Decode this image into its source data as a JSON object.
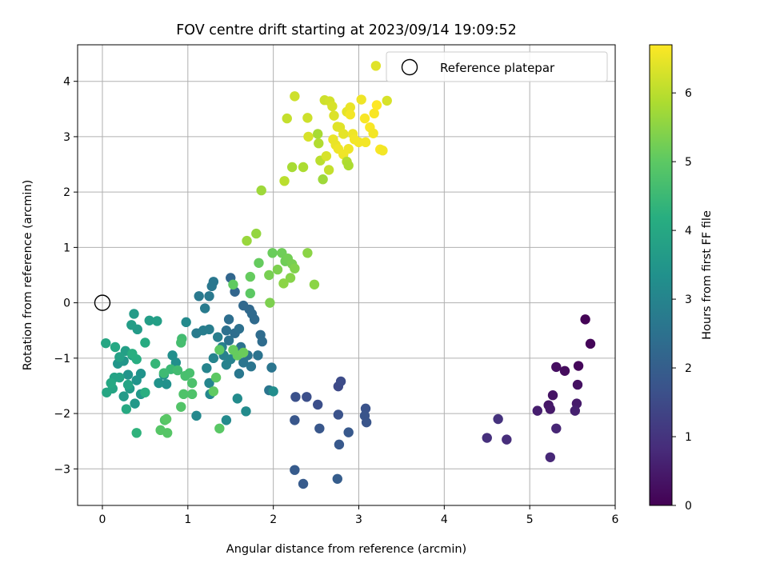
{
  "chart_data": {
    "type": "scatter",
    "title": "FOV centre drift starting at 2023/09/14 19:09:52",
    "xlabel": "Angular distance from reference (arcmin)",
    "ylabel": "Rotation from reference (arcmin)",
    "xlim": [
      -0.29,
      6.0
    ],
    "ylim": [
      -3.66,
      4.66
    ],
    "xticks": [
      0,
      1,
      2,
      3,
      4,
      5,
      6
    ],
    "yticks": [
      -3,
      -2,
      -1,
      0,
      1,
      2,
      3,
      4
    ],
    "grid": true,
    "legend": {
      "location": "upper right",
      "entries": [
        "Reference platepar"
      ]
    },
    "reference_point": {
      "label": "Reference platepar",
      "x": 0.0,
      "y": 0.0
    },
    "colorbar": {
      "label": "Hours from first FF file",
      "colormap": "viridis",
      "range": [
        0,
        6.7
      ],
      "ticks": [
        0,
        1,
        2,
        3,
        4,
        5,
        6
      ]
    },
    "series": [
      {
        "points": [
          [
            5.65,
            -0.3,
            0.05
          ],
          [
            5.71,
            -0.74,
            0.08
          ],
          [
            5.57,
            -1.14,
            0.12
          ],
          [
            5.41,
            -1.23,
            0.2
          ],
          [
            5.31,
            -1.16,
            0.25
          ],
          [
            5.56,
            -1.48,
            0.3
          ],
          [
            5.27,
            -1.67,
            0.35
          ],
          [
            5.22,
            -1.85,
            0.4
          ],
          [
            5.24,
            -1.92,
            0.45
          ],
          [
            5.55,
            -1.82,
            0.5
          ],
          [
            5.09,
            -1.95,
            0.55
          ],
          [
            5.53,
            -1.95,
            0.6
          ],
          [
            5.31,
            -2.27,
            0.7
          ],
          [
            5.24,
            -2.79,
            0.75
          ],
          [
            4.73,
            -2.47,
            0.85
          ],
          [
            4.5,
            -2.44,
            0.9
          ],
          [
            4.63,
            -2.1,
            0.95
          ],
          [
            2.76,
            -1.51,
            1.5
          ],
          [
            2.79,
            -1.42,
            1.55
          ],
          [
            2.52,
            -1.84,
            1.6
          ],
          [
            2.39,
            -1.7,
            1.6
          ],
          [
            2.26,
            -1.7,
            1.65
          ],
          [
            2.76,
            -2.02,
            1.7
          ],
          [
            3.08,
            -1.91,
            1.7
          ],
          [
            3.07,
            -2.04,
            1.75
          ],
          [
            3.09,
            -2.16,
            1.75
          ],
          [
            2.25,
            -2.12,
            1.8
          ],
          [
            2.54,
            -2.27,
            1.8
          ],
          [
            2.88,
            -2.34,
            1.85
          ],
          [
            2.77,
            -2.56,
            1.85
          ],
          [
            2.25,
            -3.02,
            1.9
          ],
          [
            2.35,
            -3.27,
            1.9
          ],
          [
            2.75,
            -3.18,
            1.95
          ],
          [
            1.5,
            0.45,
            2.2
          ],
          [
            1.55,
            0.2,
            2.2
          ],
          [
            1.65,
            -0.05,
            2.25
          ],
          [
            1.72,
            -0.12,
            2.25
          ],
          [
            1.75,
            -0.2,
            2.3
          ],
          [
            1.78,
            -0.3,
            2.3
          ],
          [
            1.85,
            -0.58,
            2.35
          ],
          [
            1.87,
            -0.7,
            2.35
          ],
          [
            1.48,
            -0.3,
            2.4
          ],
          [
            1.55,
            -0.55,
            2.4
          ],
          [
            1.45,
            -0.5,
            2.45
          ],
          [
            1.6,
            -0.47,
            2.45
          ],
          [
            1.48,
            -0.68,
            2.5
          ],
          [
            1.62,
            -0.8,
            2.5
          ],
          [
            1.7,
            -0.95,
            2.55
          ],
          [
            1.82,
            -0.95,
            2.55
          ],
          [
            1.65,
            -1.08,
            2.6
          ],
          [
            1.74,
            -1.15,
            2.6
          ],
          [
            1.6,
            -1.28,
            2.65
          ],
          [
            1.98,
            -1.17,
            2.6
          ],
          [
            1.95,
            -1.58,
            2.6
          ],
          [
            1.28,
            0.3,
            2.65
          ],
          [
            1.3,
            0.38,
            2.65
          ],
          [
            1.25,
            0.12,
            2.7
          ],
          [
            1.13,
            0.12,
            2.7
          ],
          [
            1.2,
            -0.1,
            2.75
          ],
          [
            1.1,
            -0.55,
            2.75
          ],
          [
            1.18,
            -0.5,
            2.8
          ],
          [
            1.25,
            -0.48,
            2.8
          ],
          [
            1.35,
            -0.62,
            2.85
          ],
          [
            1.4,
            -0.8,
            2.9
          ],
          [
            1.42,
            -0.95,
            2.9
          ],
          [
            1.5,
            -1.02,
            2.95
          ],
          [
            1.45,
            -1.12,
            2.95
          ],
          [
            1.3,
            -1.0,
            3.0
          ],
          [
            1.22,
            -1.18,
            3.0
          ],
          [
            1.25,
            -1.45,
            3.05
          ],
          [
            1.26,
            -1.65,
            3.1
          ],
          [
            1.1,
            -2.04,
            3.1
          ],
          [
            0.98,
            -0.35,
            3.15
          ],
          [
            1.45,
            -2.12,
            3.15
          ],
          [
            1.58,
            -1.73,
            3.2
          ],
          [
            1.68,
            -1.96,
            3.2
          ],
          [
            2.0,
            -1.6,
            3.25
          ],
          [
            0.82,
            -0.95,
            3.3
          ],
          [
            0.86,
            -1.08,
            3.3
          ],
          [
            0.72,
            -1.3,
            3.35
          ],
          [
            0.75,
            -1.47,
            3.35
          ],
          [
            0.66,
            -1.45,
            3.4
          ],
          [
            0.45,
            -1.28,
            3.4
          ],
          [
            0.4,
            -1.4,
            3.45
          ],
          [
            0.3,
            -1.3,
            3.45
          ],
          [
            0.25,
            -1.05,
            3.5
          ],
          [
            0.18,
            -1.1,
            3.5
          ],
          [
            0.38,
            -1.82,
            3.55
          ],
          [
            0.45,
            -1.65,
            3.55
          ],
          [
            0.32,
            -1.55,
            3.6
          ],
          [
            0.25,
            -1.69,
            3.6
          ],
          [
            0.37,
            -0.2,
            3.65
          ],
          [
            0.41,
            -0.48,
            3.65
          ],
          [
            0.34,
            -0.4,
            3.7
          ],
          [
            0.55,
            -0.32,
            3.7
          ],
          [
            0.64,
            -0.33,
            3.75
          ],
          [
            0.27,
            -0.87,
            3.75
          ],
          [
            0.35,
            -0.95,
            3.8
          ],
          [
            0.2,
            -0.98,
            3.8
          ],
          [
            0.14,
            -1.35,
            3.85
          ],
          [
            0.2,
            -1.35,
            3.85
          ],
          [
            0.3,
            -1.48,
            3.9
          ],
          [
            0.12,
            -1.55,
            3.9
          ],
          [
            0.05,
            -1.62,
            3.95
          ],
          [
            0.04,
            -0.73,
            3.95
          ],
          [
            0.15,
            -0.8,
            4.0
          ],
          [
            0.1,
            -1.45,
            4.0
          ],
          [
            0.28,
            -1.92,
            4.05
          ],
          [
            0.5,
            -0.72,
            4.1
          ],
          [
            0.4,
            -1.02,
            4.15
          ],
          [
            0.35,
            -0.92,
            4.2
          ],
          [
            0.5,
            -1.62,
            4.2
          ],
          [
            0.4,
            -2.35,
            4.3
          ],
          [
            0.62,
            -1.1,
            4.4
          ],
          [
            0.8,
            -1.2,
            4.5
          ],
          [
            0.72,
            -1.27,
            4.55
          ],
          [
            0.88,
            -1.22,
            4.6
          ],
          [
            0.93,
            -0.65,
            4.6
          ],
          [
            0.92,
            -0.72,
            4.65
          ],
          [
            0.97,
            -1.32,
            4.7
          ],
          [
            1.02,
            -1.27,
            4.7
          ],
          [
            1.05,
            -1.45,
            4.75
          ],
          [
            0.95,
            -1.65,
            4.8
          ],
          [
            1.05,
            -1.65,
            4.8
          ],
          [
            0.92,
            -1.88,
            4.85
          ],
          [
            0.73,
            -2.12,
            4.85
          ],
          [
            0.68,
            -2.3,
            4.9
          ],
          [
            0.76,
            -2.35,
            4.9
          ],
          [
            0.75,
            -2.1,
            4.95
          ],
          [
            1.37,
            -2.27,
            4.95
          ],
          [
            1.37,
            -0.85,
            5.0
          ],
          [
            1.33,
            -1.35,
            5.0
          ],
          [
            1.3,
            -1.6,
            5.05
          ],
          [
            1.53,
            -0.85,
            5.1
          ],
          [
            1.58,
            -0.95,
            5.1
          ],
          [
            1.65,
            -0.9,
            5.15
          ],
          [
            1.53,
            0.33,
            5.05
          ],
          [
            1.83,
            0.72,
            5.1
          ],
          [
            1.99,
            0.9,
            5.15
          ],
          [
            2.1,
            0.9,
            5.2
          ],
          [
            2.14,
            0.75,
            5.2
          ],
          [
            2.17,
            0.8,
            5.25
          ],
          [
            2.22,
            0.7,
            5.3
          ],
          [
            1.95,
            0.5,
            5.3
          ],
          [
            2.05,
            0.6,
            5.35
          ],
          [
            1.96,
            0.0,
            5.35
          ],
          [
            2.25,
            0.62,
            5.4
          ],
          [
            2.2,
            0.45,
            5.45
          ],
          [
            2.4,
            0.9,
            5.5
          ],
          [
            2.48,
            0.33,
            5.5
          ],
          [
            1.8,
            1.25,
            5.6
          ],
          [
            1.69,
            1.12,
            5.65
          ],
          [
            1.86,
            2.03,
            5.7
          ],
          [
            1.73,
            0.47,
            5.1
          ],
          [
            1.73,
            0.17,
            5.0
          ],
          [
            2.12,
            0.35,
            5.5
          ],
          [
            2.22,
            2.45,
            5.8
          ],
          [
            2.35,
            2.45,
            5.85
          ],
          [
            2.13,
            2.2,
            6.0
          ],
          [
            2.16,
            3.33,
            6.1
          ],
          [
            2.25,
            3.73,
            6.2
          ],
          [
            2.4,
            3.34,
            6.2
          ],
          [
            2.41,
            3.0,
            6.3
          ],
          [
            2.52,
            3.05,
            5.8
          ],
          [
            2.53,
            2.88,
            5.9
          ],
          [
            2.58,
            2.23,
            5.7
          ],
          [
            2.55,
            2.57,
            6.0
          ],
          [
            2.65,
            2.4,
            6.1
          ],
          [
            2.6,
            3.66,
            6.2
          ],
          [
            2.66,
            3.64,
            6.25
          ],
          [
            2.69,
            3.55,
            6.3
          ],
          [
            2.71,
            3.38,
            6.35
          ],
          [
            2.75,
            3.18,
            6.4
          ],
          [
            2.78,
            3.17,
            6.4
          ],
          [
            2.82,
            3.05,
            6.45
          ],
          [
            2.7,
            2.95,
            6.5
          ],
          [
            2.73,
            2.85,
            6.5
          ],
          [
            2.76,
            2.78,
            6.55
          ],
          [
            2.82,
            2.68,
            6.55
          ],
          [
            2.86,
            2.55,
            5.9
          ],
          [
            2.88,
            2.48,
            5.85
          ],
          [
            2.62,
            2.65,
            6.3
          ],
          [
            2.86,
            3.45,
            6.45
          ],
          [
            2.9,
            3.53,
            6.5
          ],
          [
            2.93,
            3.05,
            6.55
          ],
          [
            2.95,
            2.95,
            6.6
          ],
          [
            3.0,
            2.9,
            6.6
          ],
          [
            3.03,
            3.67,
            6.55
          ],
          [
            3.07,
            3.33,
            6.65
          ],
          [
            3.13,
            3.17,
            6.65
          ],
          [
            3.17,
            3.06,
            6.6
          ],
          [
            3.18,
            3.42,
            6.65
          ],
          [
            3.21,
            3.57,
            6.7
          ],
          [
            3.25,
            2.77,
            6.65
          ],
          [
            3.28,
            2.75,
            6.6
          ],
          [
            3.33,
            3.65,
            6.3
          ],
          [
            3.2,
            4.28,
            6.4
          ],
          [
            2.88,
            2.78,
            6.55
          ],
          [
            3.08,
            2.9,
            6.6
          ],
          [
            2.9,
            3.4,
            6.6
          ]
        ]
      }
    ]
  }
}
